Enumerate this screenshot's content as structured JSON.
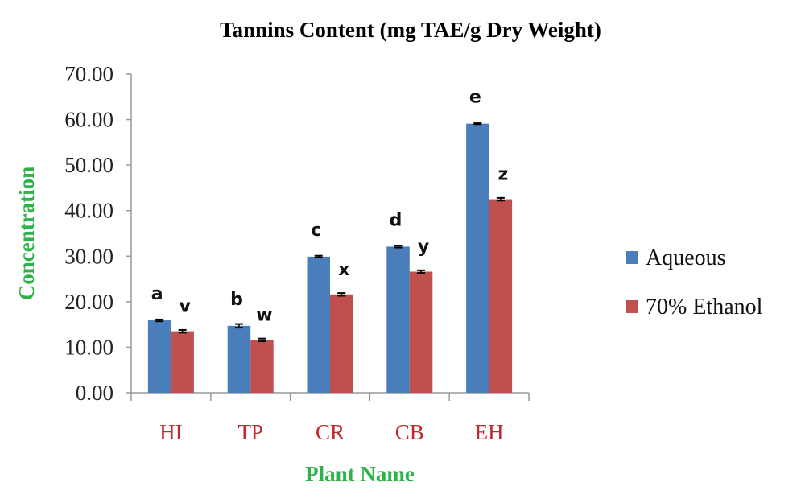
{
  "chart_data": {
    "type": "bar",
    "title": "Tannins Content (mg TAE/g Dry Weight)",
    "xlabel": "Plant Name",
    "ylabel": "Concentration",
    "ylim": [
      0,
      70
    ],
    "yticks": [
      "0.00",
      "10.00",
      "20.00",
      "30.00",
      "40.00",
      "50.00",
      "60.00",
      "70.00"
    ],
    "categories": [
      "HI",
      "TP",
      "CR",
      "CB",
      "EH"
    ],
    "series": [
      {
        "name": "Aqueous",
        "color": "#4a7ebb",
        "values": [
          15.9,
          14.7,
          29.9,
          32.1,
          59.1
        ],
        "errors": [
          0.2,
          0.4,
          0.2,
          0.2,
          0.1
        ],
        "labels": [
          "a",
          "b",
          "c",
          "d",
          "e"
        ]
      },
      {
        "name": "70% Ethanol",
        "color": "#c0504d",
        "values": [
          13.5,
          11.6,
          21.6,
          26.6,
          42.5
        ],
        "errors": [
          0.3,
          0.3,
          0.3,
          0.3,
          0.3
        ],
        "labels": [
          "v",
          "w",
          "x",
          "y",
          "z"
        ]
      }
    ],
    "grid": false,
    "legend": "right",
    "error_bars": true
  }
}
